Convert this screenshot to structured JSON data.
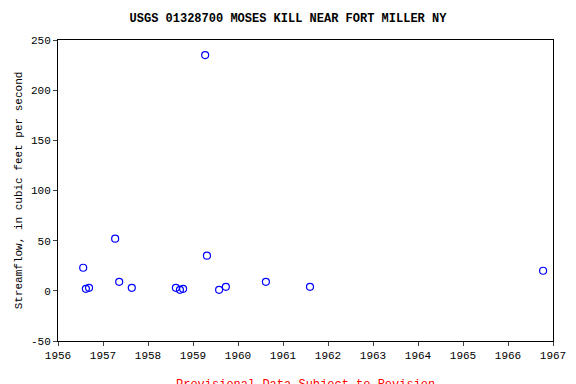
{
  "chart_data": {
    "type": "scatter",
    "title": "USGS 01328700 MOSES KILL NEAR FORT MILLER NY",
    "y_label": "Streamflow, in cubic feet per second",
    "annotations": [
      "---- Provisional Data Subject to Revision ----"
    ],
    "x": [
      1956.56,
      1956.62,
      1956.69,
      1957.27,
      1957.36,
      1957.64,
      1958.62,
      1958.71,
      1958.78,
      1959.27,
      1959.31,
      1959.58,
      1959.73,
      1960.62,
      1961.6,
      1966.78
    ],
    "values": [
      23,
      2,
      3,
      52,
      9,
      3,
      3,
      1,
      2,
      235,
      35,
      1,
      4,
      9,
      4,
      20
    ],
    "color": "#0000ff",
    "marker": "circle-open",
    "xlim": [
      1956,
      1967
    ],
    "xticks": [
      1956,
      1957,
      1958,
      1959,
      1960,
      1961,
      1962,
      1963,
      1964,
      1965,
      1966,
      1967
    ],
    "ylim": [
      -50,
      250
    ],
    "yticks": [
      -50,
      0,
      50,
      100,
      150,
      200,
      250
    ],
    "grid": false
  }
}
